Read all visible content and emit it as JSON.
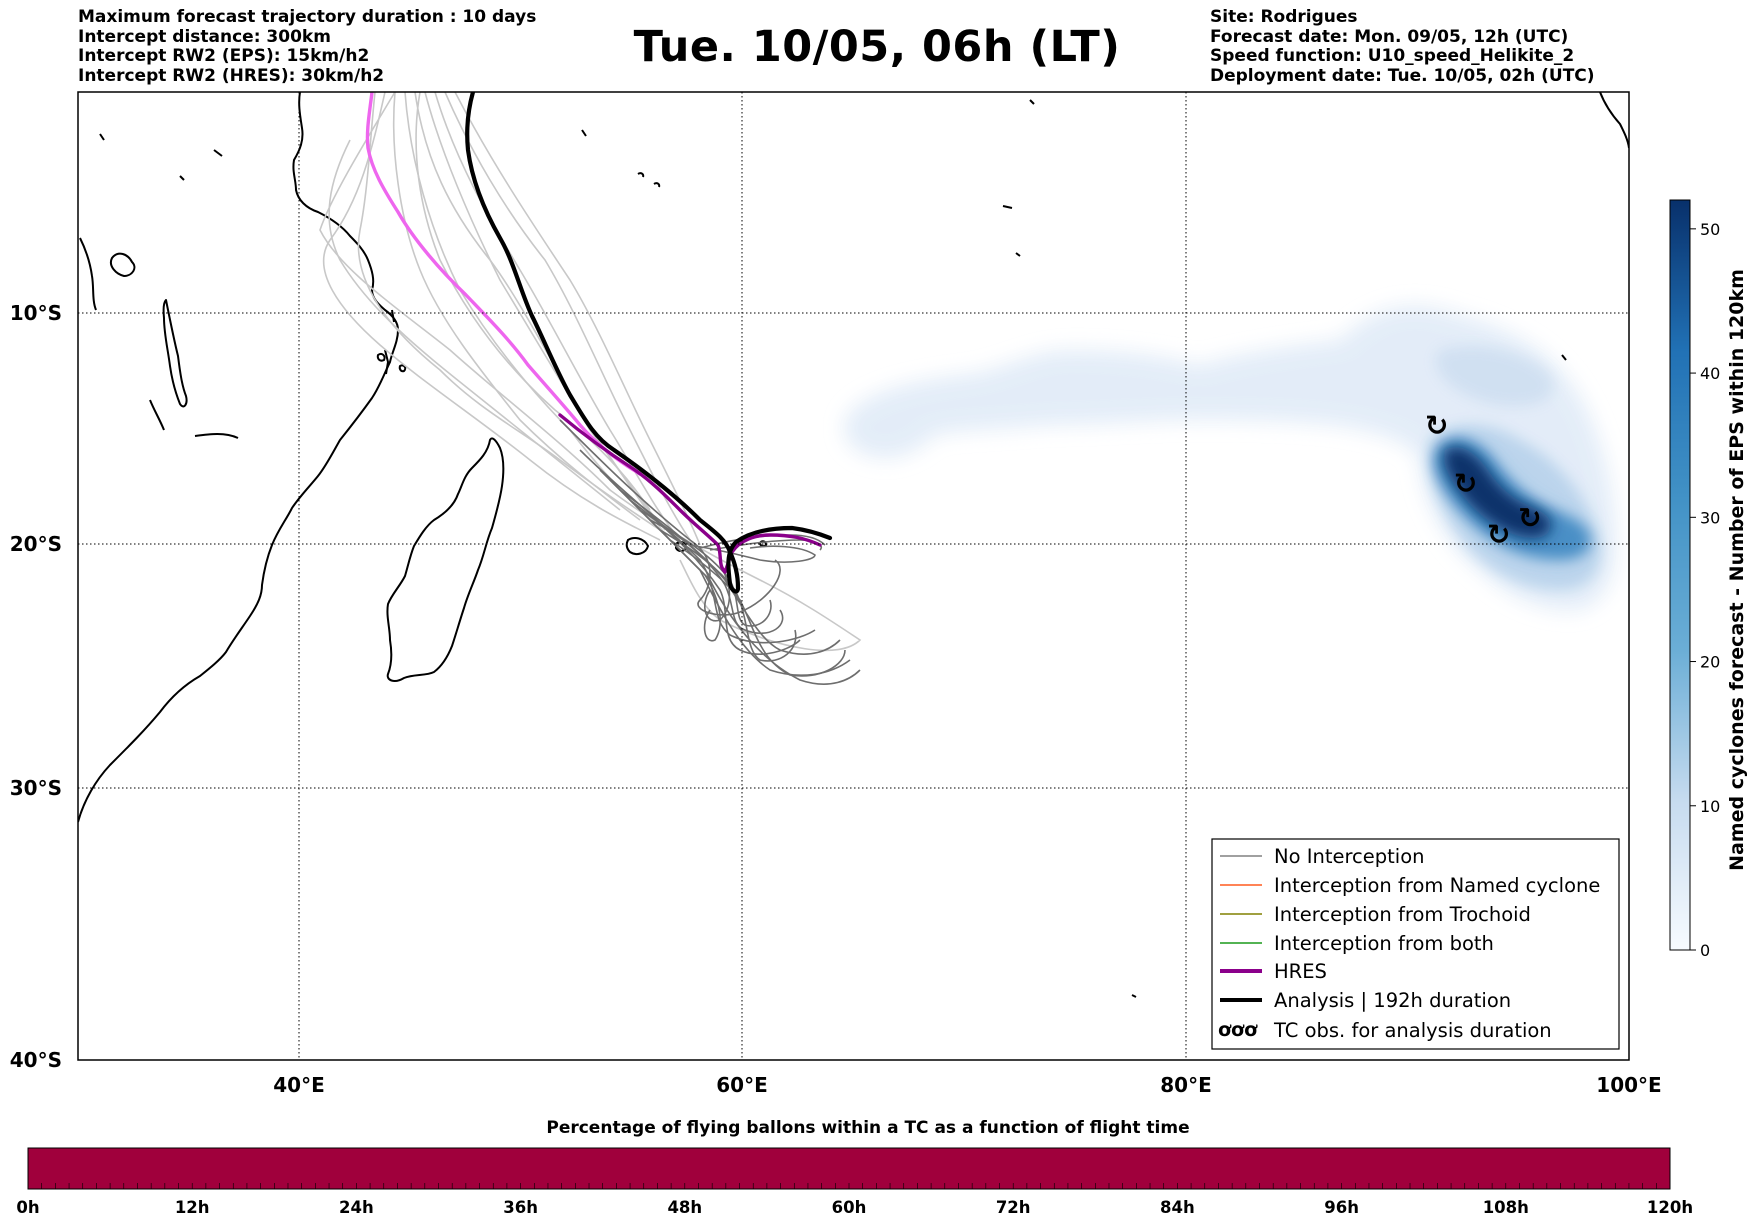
{
  "header_left": [
    "Maximum forecast trajectory duration : 10 days",
    "Intercept distance: 300km",
    "Intercept RW2 (EPS):  15km/h2",
    "Intercept RW2 (HRES): 30km/h2"
  ],
  "header_right": [
    "Site: Rodrigues",
    "Forecast date: Mon. 09/05, 12h (UTC)",
    "Speed function: U10_speed_Helikite_2",
    "Deployment date: Tue. 10/05, 02h (UTC)"
  ],
  "title": "Tue. 10/05, 06h (LT)",
  "map": {
    "lon_range": [
      30,
      100
    ],
    "lat_range": [
      -40,
      0
    ],
    "lon_ticks": [
      "40°E",
      "60°E",
      "80°E",
      "100°E"
    ],
    "lat_ticks": [
      "10°S",
      "20°S",
      "30°S",
      "40°S"
    ],
    "grid": true
  },
  "legend": {
    "position": "lower-right",
    "entries": [
      {
        "label": "No Interception",
        "color": "#808080"
      },
      {
        "label": "Interception from Named cyclone",
        "color": "#ff5a1e"
      },
      {
        "label": "Interception from Trochoid",
        "color": "#808000"
      },
      {
        "label": "Interception from both",
        "color": "#1a9a1a"
      },
      {
        "label": "HRES",
        "color": "#8b008b"
      },
      {
        "label": "Analysis | 192h duration",
        "color": "#000000"
      },
      {
        "label": "TC obs. for analysis duration",
        "color": "#000000",
        "icon": "cyclone-symbol-icon"
      }
    ]
  },
  "colorbar": {
    "label": "Named cyclones forecast - Number of EPS within 120km",
    "ticks": [
      "0",
      "10",
      "20",
      "30",
      "40",
      "50"
    ],
    "range": [
      0,
      52
    ],
    "color_low": "#deebf7",
    "color_high": "#08306b"
  },
  "timebar": {
    "title": "Percentage of flying ballons within a TC as a function of flight time",
    "ticks": [
      "0h",
      "12h",
      "24h",
      "36h",
      "48h",
      "60h",
      "72h",
      "84h",
      "96h",
      "108h",
      "120h"
    ],
    "fill_color": "#a0003c",
    "fill_fraction": 1.0
  },
  "tc_observations": [
    {
      "lon": 91.2,
      "lat": -14.9
    },
    {
      "lon": 92.5,
      "lat": -17.4
    },
    {
      "lon": 94.0,
      "lat": -19.6
    },
    {
      "lon": 95.4,
      "lat": -18.9
    }
  ]
}
